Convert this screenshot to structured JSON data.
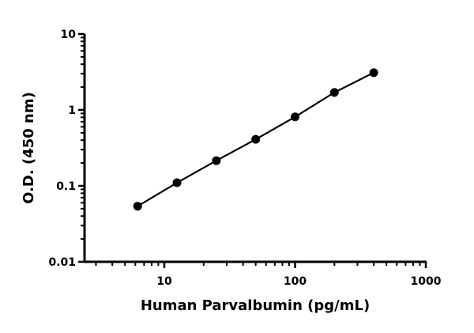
{
  "chart_data": {
    "type": "scatter",
    "title": "",
    "xlabel": "Human Parvalbumin (pg/mL)",
    "ylabel": "O.D. (450 nm)",
    "xscale": "log",
    "yscale": "log",
    "xlim": [
      2.5,
      1000
    ],
    "ylim": [
      0.01,
      10
    ],
    "xticks": [
      "10",
      "100",
      "1000"
    ],
    "yticks": [
      "0.01",
      "0.1",
      "1",
      "10"
    ],
    "grid": false,
    "line": "fitted curve through points",
    "color": "#000000",
    "series": [
      {
        "x": [
          6.25,
          12.5,
          25,
          50,
          100,
          200,
          400
        ],
        "y": [
          0.054,
          0.11,
          0.215,
          0.41,
          0.81,
          1.7,
          3.1
        ]
      }
    ]
  }
}
